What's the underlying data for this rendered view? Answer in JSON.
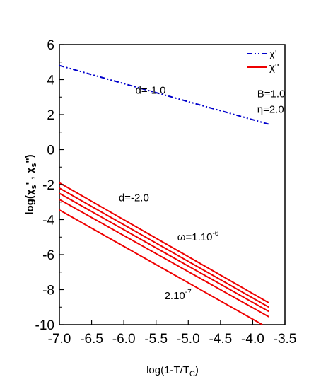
{
  "chart_data": {
    "type": "line",
    "title": "",
    "xlabel": {
      "main": "log(1-T/T",
      "sub": "C",
      "tail": ")"
    },
    "ylabel": {
      "p1": "log(",
      "chi1": "χ",
      "s1": "s",
      "mid": "' , ",
      "chi2": "χ",
      "s2": "s",
      "tail": "'')"
    },
    "xlim": [
      -7.0,
      -3.5
    ],
    "ylim": [
      -10,
      6
    ],
    "xticks": [
      -7.0,
      -6.5,
      -6.0,
      -5.5,
      -5.0,
      -4.5,
      -4.0,
      -3.5
    ],
    "xtick_labels": [
      "-7.0",
      "-6.5",
      "-6.0",
      "-5.5",
      "-5.0",
      "-4.5",
      "-4.0",
      "-3.5"
    ],
    "yticks": [
      6,
      4,
      2,
      0,
      -2,
      -4,
      -6,
      -8,
      -10
    ],
    "ytick_labels": [
      "6",
      "4",
      "2",
      "0",
      "-2",
      "-4",
      "-6",
      "-8",
      "-10"
    ],
    "grid": false,
    "legend_position": "top-right",
    "legend": [
      {
        "label": "χ'",
        "color": "#0000cc",
        "style": "dash-dot-dot"
      },
      {
        "label": "χ''",
        "color": "#ee0000",
        "style": "solid"
      }
    ],
    "series": [
      {
        "color": "#0000cc",
        "style": "dash-dot-dot",
        "x": [
          -7.0,
          -3.75
        ],
        "y": [
          4.8,
          1.45
        ]
      },
      {
        "color": "#ee0000",
        "style": "solid",
        "x": [
          -7.0,
          -3.75
        ],
        "y": [
          -1.9,
          -8.75
        ]
      },
      {
        "color": "#ee0000",
        "style": "solid",
        "x": [
          -7.0,
          -3.75
        ],
        "y": [
          -2.2,
          -9.0
        ]
      },
      {
        "color": "#ee0000",
        "style": "solid",
        "x": [
          -7.0,
          -3.75
        ],
        "y": [
          -2.5,
          -9.25
        ]
      },
      {
        "color": "#ee0000",
        "style": "solid",
        "x": [
          -7.0,
          -3.75
        ],
        "y": [
          -2.85,
          -9.55
        ]
      },
      {
        "color": "#ee0000",
        "style": "solid",
        "x": [
          -7.0,
          -3.85
        ],
        "y": [
          -3.45,
          -10.0
        ]
      }
    ],
    "annotations": [
      {
        "id": "d1",
        "text": "d=-1.0",
        "x": -5.82,
        "y": 3.2
      },
      {
        "id": "d2",
        "text": "d=-2.0",
        "x": -6.08,
        "y": -2.95
      },
      {
        "id": "b",
        "text": "B=1.0",
        "x": -3.93,
        "y": 3.0
      },
      {
        "id": "eta",
        "text": "η=2.0",
        "x": -3.93,
        "y": 2.1
      },
      {
        "id": "omega",
        "text": "ω=1.10",
        "sup": "-6",
        "x": -5.17,
        "y": -5.2
      },
      {
        "id": "low",
        "text": "2.10",
        "sup": "-7",
        "x": -5.37,
        "y": -8.55
      }
    ]
  }
}
